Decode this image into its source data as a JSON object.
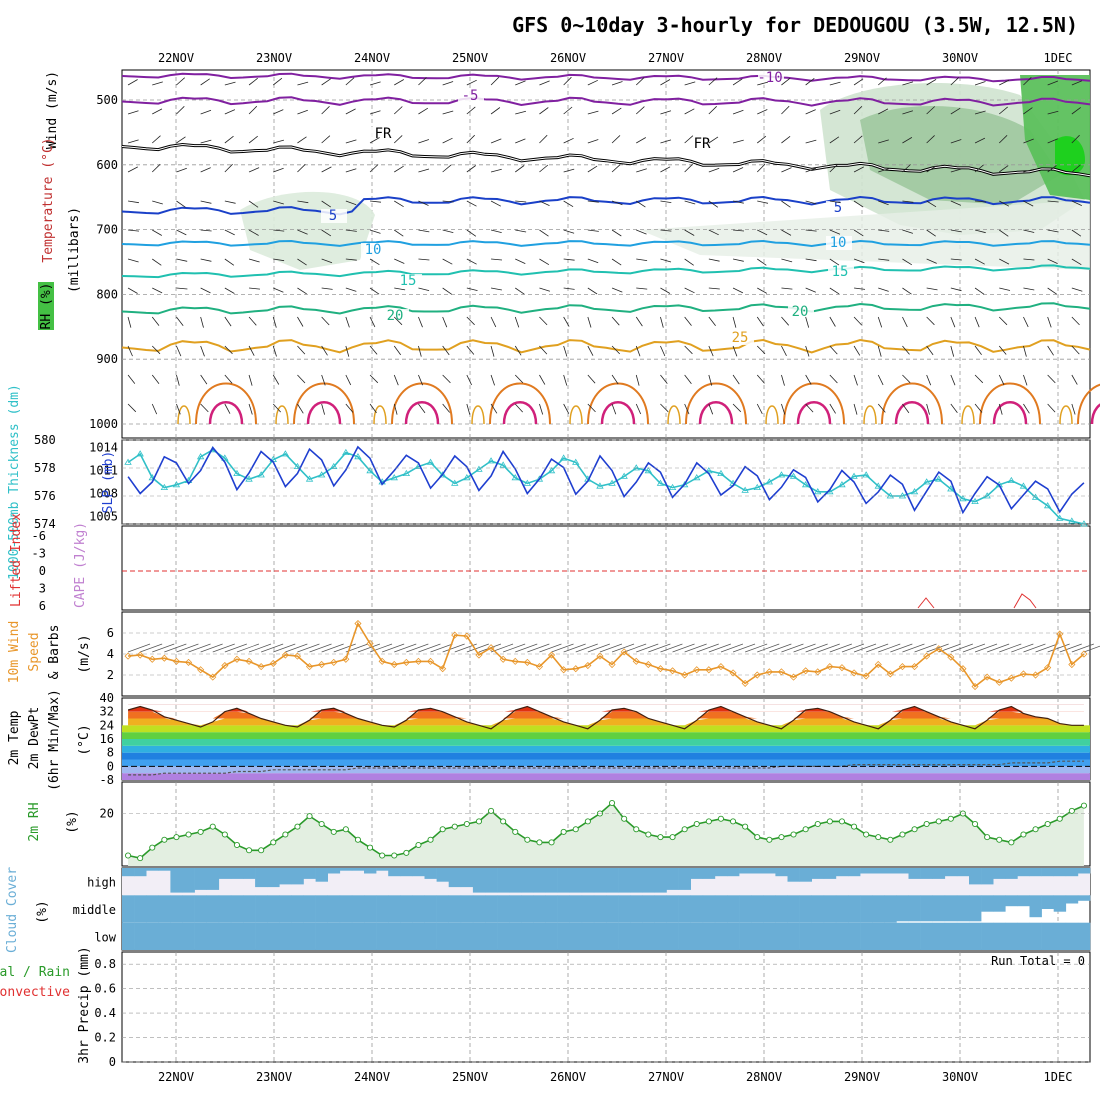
{
  "title": "GFS 0~10day 3-hourly for DEDOUGOU (3.5W, 12.5N)",
  "dates": [
    "22NOV",
    "23NOV",
    "24NOV",
    "25NOV",
    "26NOV",
    "27NOV",
    "28NOV",
    "29NOV",
    "30NOV",
    "1DEC"
  ],
  "colors": {
    "rh": "#44c044",
    "thickness": "#30c0c8",
    "slp": "#1f3fd0",
    "wind10m": "#e8962a",
    "temp_fill": "#c04020",
    "rh2m": "#2a9a2a",
    "cloud": "#6aaed6",
    "lifted": "#e03030",
    "cape": "#c080d0",
    "grid": "#999999"
  },
  "panels": {
    "upper": {
      "ylabel_main": "(millibars)",
      "ylabel_wind": "Wind (m/s)",
      "ylabel_temp": "Temperature (°C)",
      "ylabel_rh": "RH (%)",
      "yticks": [
        "500",
        "600",
        "700",
        "800",
        "900",
        "1000"
      ],
      "contour_labels": [
        "-10",
        "-5",
        "FR",
        "FR",
        "5",
        "5",
        "10",
        "10",
        "15",
        "15",
        "20",
        "20",
        "25"
      ]
    },
    "thickness": {
      "ylabel_left": "1000-500mb Thickness (dm)",
      "ylabel_right": "SLP (mb)",
      "yticks_left": [
        "574",
        "576",
        "578",
        "580"
      ],
      "yticks_right": [
        "1005",
        "1008",
        "1011",
        "1014"
      ]
    },
    "stability": {
      "ylabel_left": "Lifted Index",
      "ylabel_right": "CAPE (J/kg)",
      "yticks": [
        "-6",
        "-3",
        "0",
        "3",
        "6"
      ]
    },
    "wind10m": {
      "ylabel_a": "10m Wind",
      "ylabel_b": "Speed",
      "ylabel_c": "& Barbs",
      "units": "(m/s)",
      "yticks": [
        "2",
        "4",
        "6"
      ]
    },
    "temp2m": {
      "ylabel_a": "2m Temp",
      "ylabel_b": "2m DewPt",
      "ylabel_c": "(6hr Min/Max)",
      "units": "(°C)",
      "yticks": [
        "-8",
        "0",
        "8",
        "16",
        "24",
        "32",
        "40"
      ]
    },
    "rh2m": {
      "ylabel": "2m RH",
      "units": "(%)",
      "yticks": [
        "20"
      ]
    },
    "cloud": {
      "ylabel": "Cloud Cover",
      "units": "(%)",
      "levels": [
        "high",
        "middle",
        "low"
      ]
    },
    "precip": {
      "ylabel_a": "Total / Rain",
      "ylabel_b": "Convective",
      "ylabel_c": "3hr Precip (mm)",
      "yticks": [
        "0",
        "0.2",
        "0.4",
        "0.6",
        "0.8"
      ],
      "run_total": "Run Total = 0"
    }
  },
  "chart_data": [
    {
      "type": "line",
      "panel": "thickness",
      "xlabel": "",
      "series": [
        {
          "name": "1000-500mb Thickness (dm)",
          "axis": "left",
          "values": [
            578.4,
            579.0,
            577.3,
            576.6,
            576.8,
            577.1,
            578.8,
            579.3,
            578.7,
            577.6,
            577.2,
            577.5,
            578.6,
            579.0,
            578.1,
            577.2,
            577.5,
            578.1,
            579.1,
            578.8,
            577.8,
            577.0,
            577.3,
            577.6,
            578.1,
            578.4,
            577.5,
            576.9,
            577.3,
            577.9,
            578.5,
            578.2,
            577.3,
            576.9,
            577.2,
            577.8,
            578.7,
            578.4,
            577.2,
            576.7,
            576.9,
            577.4,
            578.0,
            577.8,
            576.9,
            576.6,
            576.8,
            577.3,
            577.8,
            577.6,
            576.9,
            576.4,
            576.6,
            577.0,
            577.5,
            577.4,
            576.8,
            576.3,
            576.3,
            576.8,
            577.4,
            577.5,
            576.7,
            576.0,
            576.0,
            576.3,
            577.0,
            577.2,
            576.5,
            575.8,
            575.6,
            576.0,
            576.8,
            577.1,
            576.7,
            575.9,
            575.3,
            574.4,
            574.2,
            574.0
          ]
        },
        {
          "name": "SLP (mb)",
          "axis": "right",
          "values": [
            1010.2,
            1008.0,
            1009.5,
            1012.8,
            1012.0,
            1009.3,
            1011.0,
            1014.0,
            1012.1,
            1008.5,
            1010.7,
            1013.5,
            1012.1,
            1008.9,
            1010.6,
            1013.8,
            1012.4,
            1009.0,
            1011.1,
            1014.1,
            1012.6,
            1009.2,
            1011.0,
            1013.0,
            1012.0,
            1008.7,
            1010.5,
            1012.9,
            1011.5,
            1008.4,
            1010.3,
            1013.5,
            1011.2,
            1008.0,
            1009.9,
            1012.5,
            1011.4,
            1007.9,
            1009.6,
            1012.9,
            1011.0,
            1007.6,
            1009.5,
            1012.0,
            1010.8,
            1007.5,
            1009.2,
            1012.0,
            1010.6,
            1007.8,
            1009.0,
            1011.5,
            1010.3,
            1007.2,
            1008.8,
            1011.1,
            1010.1,
            1006.9,
            1008.5,
            1011.0,
            1009.5,
            1006.7,
            1008.2,
            1010.4,
            1009.2,
            1005.8,
            1008.3,
            1010.8,
            1009.6,
            1005.5,
            1008.0,
            1010.2,
            1009.1,
            1006.0,
            1007.8,
            1009.6,
            1008.6,
            1005.6,
            1007.9,
            1009.4
          ]
        }
      ],
      "ylim_left": [
        574,
        580
      ],
      "ylim_right": [
        1004,
        1015
      ]
    },
    {
      "type": "line",
      "panel": "wind10m",
      "ylabel": "(m/s)",
      "series": [
        {
          "name": "Speed",
          "values": [
            3.8,
            3.9,
            3.5,
            3.6,
            3.3,
            3.2,
            2.5,
            1.8,
            2.9,
            3.5,
            3.3,
            2.8,
            3.1,
            3.9,
            3.8,
            2.8,
            3.0,
            3.2,
            3.5,
            6.9,
            5.0,
            3.3,
            3.0,
            3.2,
            3.3,
            3.3,
            2.6,
            5.8,
            5.7,
            3.9,
            4.6,
            3.5,
            3.3,
            3.2,
            2.8,
            3.9,
            2.5,
            2.6,
            2.9,
            3.8,
            3.0,
            4.2,
            3.3,
            3.0,
            2.6,
            2.4,
            2.0,
            2.5,
            2.5,
            2.8,
            2.2,
            1.2,
            2.0,
            2.3,
            2.3,
            1.8,
            2.4,
            2.3,
            2.8,
            2.7,
            2.2,
            1.9,
            3.0,
            2.1,
            2.8,
            2.8,
            3.8,
            4.5,
            3.7,
            2.6,
            0.9,
            1.8,
            1.3,
            1.7,
            2.1,
            2.0,
            2.7,
            5.9,
            3.0,
            4.0
          ]
        }
      ],
      "ylim": [
        0,
        8
      ]
    },
    {
      "type": "area",
      "panel": "temp2m",
      "ylabel": "(°C)",
      "series": [
        {
          "name": "2m Temp",
          "values": [
            33,
            35,
            33,
            29,
            27,
            25,
            23,
            26,
            32,
            34,
            31,
            28,
            26,
            24,
            23,
            27,
            33,
            34,
            31,
            28,
            26,
            24,
            23,
            27,
            33,
            34,
            32,
            29,
            26,
            24,
            22,
            27,
            33,
            35,
            32,
            29,
            26,
            24,
            22,
            27,
            33,
            34,
            32,
            28,
            26,
            24,
            22,
            27,
            33,
            35,
            32,
            29,
            26,
            24,
            22,
            27,
            33,
            34,
            32,
            29,
            26,
            24,
            22,
            27,
            33,
            35,
            32,
            29,
            26,
            24,
            22,
            27,
            33,
            35,
            31,
            29,
            28,
            25,
            24,
            24
          ]
        },
        {
          "name": "2m DewPt",
          "values": [
            -5,
            -5,
            -5,
            -4,
            -4,
            -4,
            -4,
            -4,
            -4,
            -3,
            -3,
            -3,
            -2,
            -2,
            -2,
            -2,
            -2,
            -2,
            -2,
            -1,
            -1,
            -1,
            -1,
            -1,
            -1,
            -1,
            -1,
            -1,
            -1,
            -1,
            -1,
            -1,
            -1,
            -1,
            -1,
            -1,
            -1,
            -1,
            -1,
            -1,
            -1,
            -1,
            -1,
            -1,
            -1,
            -1,
            -1,
            -1,
            -1,
            -1,
            -1,
            -1,
            -1,
            -1,
            0,
            0,
            0,
            0,
            0,
            0,
            1,
            1,
            1,
            1,
            1,
            1,
            1,
            1,
            1,
            1,
            1,
            1,
            1,
            2,
            2,
            2,
            2,
            3,
            3,
            3
          ]
        }
      ],
      "ylim": [
        -8,
        40
      ]
    },
    {
      "type": "area",
      "panel": "rh2m",
      "ylabel": "(%)",
      "series": [
        {
          "name": "2m RH",
          "values": [
            4,
            3,
            7,
            10,
            11,
            12,
            13,
            15,
            12,
            8,
            6,
            6,
            9,
            12,
            15,
            19,
            16,
            13,
            14,
            10,
            7,
            4,
            4,
            5,
            8,
            10,
            14,
            15,
            16,
            17,
            21,
            17,
            13,
            10,
            9,
            9,
            13,
            14,
            17,
            20,
            24,
            18,
            14,
            12,
            11,
            11,
            14,
            16,
            17,
            18,
            17,
            15,
            11,
            10,
            11,
            12,
            14,
            16,
            17,
            17,
            15,
            12,
            11,
            10,
            12,
            14,
            16,
            17,
            18,
            20,
            16,
            11,
            10,
            9,
            12,
            14,
            16,
            18,
            21,
            23
          ]
        }
      ],
      "ylim": [
        0,
        32
      ]
    },
    {
      "type": "bar",
      "panel": "cloud",
      "series": [
        {
          "name": "high",
          "values": [
            30,
            30,
            10,
            10,
            90,
            90,
            80,
            80,
            40,
            40,
            40,
            70,
            70,
            60,
            60,
            40,
            50,
            20,
            10,
            10,
            20,
            10,
            30,
            30,
            30,
            40,
            50,
            70,
            70,
            90,
            90,
            90,
            90,
            90,
            90,
            90,
            90,
            90,
            90,
            90,
            90,
            90,
            90,
            90,
            90,
            80,
            80,
            40,
            40,
            30,
            30,
            20,
            20,
            20,
            30,
            50,
            50,
            40,
            40,
            30,
            30,
            20,
            20,
            20,
            20,
            40,
            40,
            40,
            30,
            30,
            60,
            60,
            40,
            40,
            30,
            30,
            30,
            30,
            30,
            20
          ]
        },
        {
          "name": "middle",
          "values": [
            100,
            100,
            100,
            100,
            100,
            100,
            100,
            100,
            100,
            100,
            100,
            100,
            100,
            100,
            100,
            100,
            100,
            100,
            100,
            100,
            100,
            100,
            100,
            100,
            100,
            100,
            100,
            100,
            100,
            100,
            100,
            100,
            100,
            100,
            100,
            100,
            100,
            100,
            100,
            100,
            100,
            100,
            100,
            100,
            100,
            100,
            100,
            100,
            100,
            100,
            100,
            100,
            100,
            100,
            100,
            100,
            100,
            100,
            100,
            100,
            100,
            100,
            100,
            100,
            95,
            95,
            95,
            95,
            95,
            95,
            95,
            60,
            60,
            40,
            40,
            80,
            50,
            60,
            30,
            20
          ]
        },
        {
          "name": "low",
          "values": [
            100,
            100,
            100,
            100,
            100,
            100,
            100,
            100,
            100,
            100,
            100,
            100,
            100,
            100,
            100,
            100,
            100,
            100,
            100,
            100,
            100,
            100,
            100,
            100,
            100,
            100,
            100,
            100,
            100,
            100,
            100,
            100,
            100,
            100,
            100,
            100,
            100,
            100,
            100,
            100,
            100,
            100,
            100,
            100,
            100,
            100,
            100,
            100,
            100,
            100,
            100,
            100,
            100,
            100,
            100,
            100,
            100,
            100,
            100,
            100,
            100,
            100,
            100,
            100,
            100,
            100,
            100,
            100,
            100,
            100,
            100,
            100,
            100,
            100,
            100,
            100,
            100,
            100,
            100,
            100
          ]
        }
      ],
      "ylim": [
        0,
        100
      ]
    },
    {
      "type": "bar",
      "panel": "precip",
      "series": [
        {
          "name": "3hr Precip (mm)",
          "values": []
        }
      ],
      "ylim": [
        0,
        0.9
      ]
    }
  ]
}
